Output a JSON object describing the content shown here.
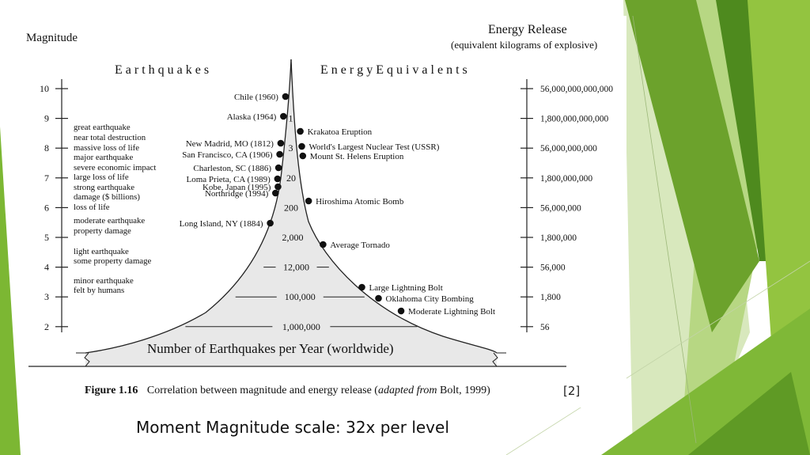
{
  "header": {
    "magnitude": "Magnitude",
    "energy_release": "Energy Release",
    "energy_sub": "(equivalent kilograms of explosive)",
    "earthquakes": "E a r t h q u a k e s",
    "equivalents": "E n e r g y E q u i v a l e n t s"
  },
  "magnitude_ticks": [
    "10",
    "9",
    "8",
    "7",
    "6",
    "5",
    "4",
    "3",
    "2"
  ],
  "energy_ticks": [
    "56,000,000,000,000",
    "1,800,000,000,000",
    "56,000,000,000",
    "1,800,000,000",
    "56,000,000",
    "1,800,000",
    "56,000",
    "1,800",
    "56"
  ],
  "descriptions": [
    "great earthquake",
    "near total destruction",
    "massive loss of life",
    "major earthquake",
    "severe economic impact",
    "large loss of life",
    "strong earthquake",
    "damage ($ billions)",
    "loss of life",
    "moderate earthquake",
    "property damage",
    "light earthquake",
    "some property damage",
    "minor earthquake",
    "felt by humans"
  ],
  "earthquake_events": [
    {
      "label": "Chile (1960)",
      "magnitude": 9.5
    },
    {
      "label": "Alaska (1964)",
      "magnitude": 9.2
    },
    {
      "label": "New Madrid, MO (1812)",
      "magnitude": 8.1
    },
    {
      "label": "San Francisco, CA (1906)",
      "magnitude": 7.8
    },
    {
      "label": "Charleston, SC (1886)",
      "magnitude": 7.3
    },
    {
      "label": "Loma Prieta, CA (1989)",
      "magnitude": 7.0
    },
    {
      "label": "Kobe, Japan (1995)",
      "magnitude": 6.9
    },
    {
      "label": "Northridge (1994)",
      "magnitude": 6.7
    },
    {
      "label": "Long Island, NY (1884)",
      "magnitude": 5.4
    }
  ],
  "energy_events": [
    {
      "label": "Krakatoa Eruption",
      "magnitude": 8.5
    },
    {
      "label": "World's Largest Nuclear Test (USSR)",
      "magnitude": 8.0
    },
    {
      "label": "Mount St. Helens Eruption",
      "magnitude": 7.7
    },
    {
      "label": "Hiroshima Atomic Bomb",
      "magnitude": 6.2
    },
    {
      "label": "Average Tornado",
      "magnitude": 4.8
    },
    {
      "label": "Large Lightning Bolt",
      "magnitude": 3.3
    },
    {
      "label": "Oklahoma City Bombing",
      "magnitude": 3.0
    },
    {
      "label": "Moderate Lightning Bolt",
      "magnitude": 2.6
    }
  ],
  "frequency_labels": [
    {
      "label": "1",
      "magnitude": 9.0
    },
    {
      "label": "3",
      "magnitude": 8.0
    },
    {
      "label": "20",
      "magnitude": 7.0
    },
    {
      "label": "200",
      "magnitude": 6.0
    },
    {
      "label": "2,000",
      "magnitude": 5.0
    },
    {
      "label": "12,000",
      "magnitude": 4.0
    },
    {
      "label": "100,000",
      "magnitude": 3.0
    },
    {
      "label": "1,000,000",
      "magnitude": 2.0
    }
  ],
  "base_label": "Number of Earthquakes per Year (worldwide)",
  "figure": {
    "number": "Figure 1.16",
    "text": "Correlation between magnitude and energy release (",
    "italic": "adapted from",
    "tail": " Bolt, 1999)"
  },
  "reference": "[2]",
  "caption": "Moment Magnitude scale: 32x per level",
  "colors": {
    "green_dark": "#4e8a1e",
    "green_mid": "#6aaa2a",
    "green_light": "#9ccb4a",
    "green_pale": "#d3e6b0",
    "pyramid_fill": "#e8e8e8"
  }
}
